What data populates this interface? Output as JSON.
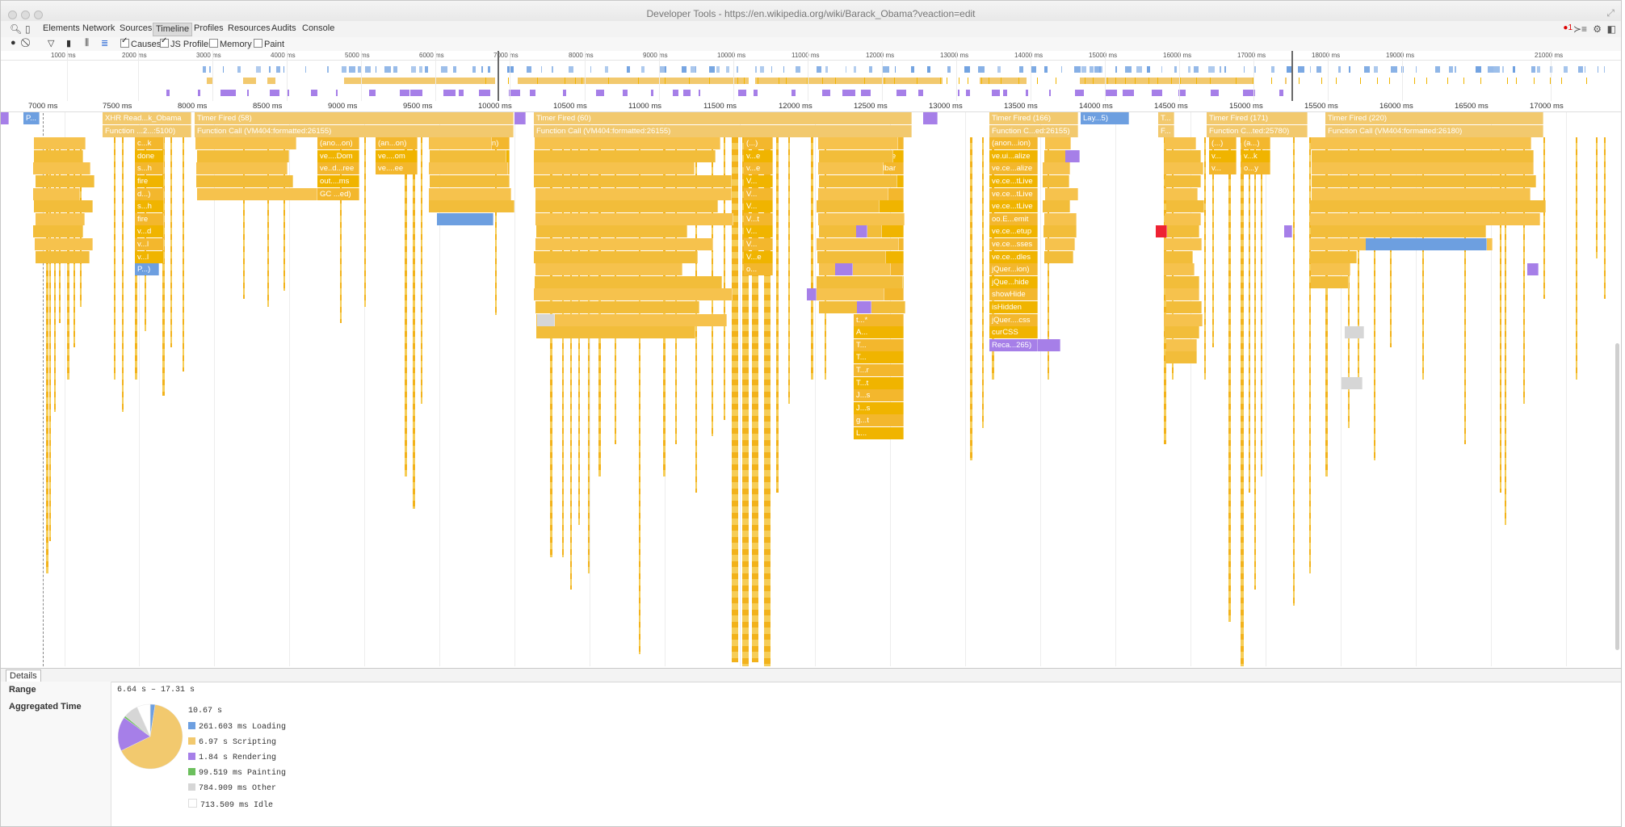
{
  "window": {
    "title": "Developer Tools - https://en.wikipedia.org/wiki/Barack_Obama?veaction=edit"
  },
  "tabs": [
    {
      "label": "Elements",
      "selected": false
    },
    {
      "label": "Network",
      "selected": false
    },
    {
      "label": "Sources",
      "selected": false
    },
    {
      "label": "Timeline",
      "selected": true
    },
    {
      "label": "Profiles",
      "selected": false
    },
    {
      "label": "Resources",
      "selected": false
    },
    {
      "label": "Audits",
      "selected": false
    },
    {
      "label": "Console",
      "selected": false
    }
  ],
  "error_count": "1",
  "toolbar": {
    "causes_label": "Causes",
    "causes_checked": true,
    "js_profiler_label": "JS Profiler",
    "js_profiler_checked": true,
    "memory_label": "Memory",
    "memory_checked": false,
    "paint_label": "Paint",
    "paint_checked": false
  },
  "overview_ticks": [
    "1000 ms",
    "2000 ms",
    "3000 ms",
    "4000 ms",
    "5000 ms",
    "6000 ms",
    "7000 ms",
    "8000 ms",
    "9000 ms",
    "10000 ms",
    "11000 ms",
    "12000 ms",
    "13000 ms",
    "14000 ms",
    "15000 ms",
    "16000 ms",
    "17000 ms",
    "18000 ms",
    "19000 ms",
    "21000 ms"
  ],
  "flame_ticks": [
    "7000 ms",
    "7500 ms",
    "8000 ms",
    "8500 ms",
    "9000 ms",
    "9500 ms",
    "10000 ms",
    "10500 ms",
    "11000 ms",
    "11500 ms",
    "12000 ms",
    "12500 ms",
    "13000 ms",
    "13500 ms",
    "14000 ms",
    "14500 ms",
    "15000 ms",
    "15500 ms",
    "16000 ms",
    "16500 ms",
    "17000 ms"
  ],
  "flame_labels": {
    "xhr": "XHR Read...k_Obama",
    "p1": "P...",
    "fn_5100": "Function ...2...:5100)",
    "timer58": "Timer Fired (58)",
    "fc_26155a": "Function Call (VM404:formatted:26155)",
    "timer60": "Timer Fired (60)",
    "fc_26155b": "Function Call (VM404:formatted:26155)",
    "timer166": "Timer Fired (166)",
    "fc_26155c": "Function C...ed:26155)",
    "lay": "Lay...5)",
    "t": "T...",
    "f": "F...",
    "timer171": "Timer Fired (171)",
    "fc_25780": "Function C...ted:25780)",
    "timer220": "Timer Fired (220)",
    "fc_26180": "Function Call (VM404:formatted:26180)",
    "col1": [
      "c...k",
      "done",
      "s...h",
      "fire",
      "d...)",
      "s...h",
      "fire",
      "v...d",
      "v...l",
      "v...l"
    ],
    "col1_tail": "P...)",
    "colA": [
      "(ano...on)",
      "ve....Dom",
      "ve..d...ree",
      "out....ms",
      "GC ...ed)"
    ],
    "colB": [
      "(an...on)",
      "ve....om",
      "ve....ee"
    ],
    "colC": [
      "(...)",
      "v...",
      "v..."
    ],
    "colD": [
      "(an...on)",
      "ve....om",
      "ve....ata"
    ],
    "col60a": [
      "(...)"
    ],
    "col60b": [
      "(...)",
      "v...e",
      "v...e",
      "V...",
      "V...",
      "V...",
      "V...t",
      "V...",
      "V...",
      "V...e",
      "o..."
    ],
    "col60c": [
      "(a...)",
      "v...e",
      "ve...r",
      "ve...r",
      "v...p",
      "O...p",
      "o..."
    ],
    "col60d": [
      "(anon...ion)",
      "ve.in...rface",
      "ve.in...olbar",
      "jQuer...tion)",
      "jQu...te",
      "jQ...ue",
      "jQ...ch",
      "jQ...ch",
      "(an...n)",
      "jQ...ue",
      "do...on",
      "An...on",
      "def...er",
      "c...n",
      "t...*",
      "A...",
      "T...",
      "T...",
      "T...r",
      "T...t",
      "J...s",
      "J...s",
      "g...t",
      "L..."
    ],
    "col60e": [
      "j...",
      "j...",
      "(...",
      "j...",
      "c..."
    ],
    "col166": [
      "(anon...ion)",
      "ve.ui...alize",
      "ve.ce...alize",
      "ve.ce...tLive",
      "ve.ce...tLive",
      "ve.ce...tLive",
      "oo.E...emit",
      "ve.ce...etup",
      "ve.ce...sses",
      "ve.ce...dles",
      "jQuer...ion)",
      "jQue...hide",
      "showHide",
      "isHidden",
      "jQuer....css",
      "curCSS",
      "Reca...265)"
    ],
    "col171a": [
      "(...)",
      "v...",
      "v..."
    ],
    "col171b": [
      "(a...)",
      "v...k",
      "o...y"
    ],
    "col220": [
      "(...)",
      "v...l",
      "v...l",
      "v...l",
      "v...l"
    ]
  },
  "details": {
    "tab_label": "Details",
    "range_label": "Range",
    "range_value": "6.64 s – 17.31 s",
    "agg_label": "Aggregated Time",
    "total": "10.67 s",
    "categories": [
      {
        "value": "261.603 ms",
        "name": "Loading",
        "color": "#6d9fe0"
      },
      {
        "value": "6.97 s",
        "name": "Scripting",
        "color": "#f2c96e"
      },
      {
        "value": "1.84 s",
        "name": "Rendering",
        "color": "#a67fe8"
      },
      {
        "value": "99.519 ms",
        "name": "Painting",
        "color": "#6cbf5d"
      },
      {
        "value": "784.909 ms",
        "name": "Other",
        "color": "#d6d6d6"
      },
      {
        "value": "713.509 ms",
        "name": "Idle",
        "color": "#ffffff"
      }
    ],
    "pie_fractions": [
      0.0245,
      0.6532,
      0.1724,
      0.0093,
      0.0736,
      0.0669
    ]
  },
  "colors": {
    "scripting": "#f2c96e",
    "scripting_dark": "#f0b400",
    "rendering": "#a67fe8",
    "loading": "#6d9fe0",
    "painting": "#6cbf5d",
    "other": "#d6d6d6"
  }
}
